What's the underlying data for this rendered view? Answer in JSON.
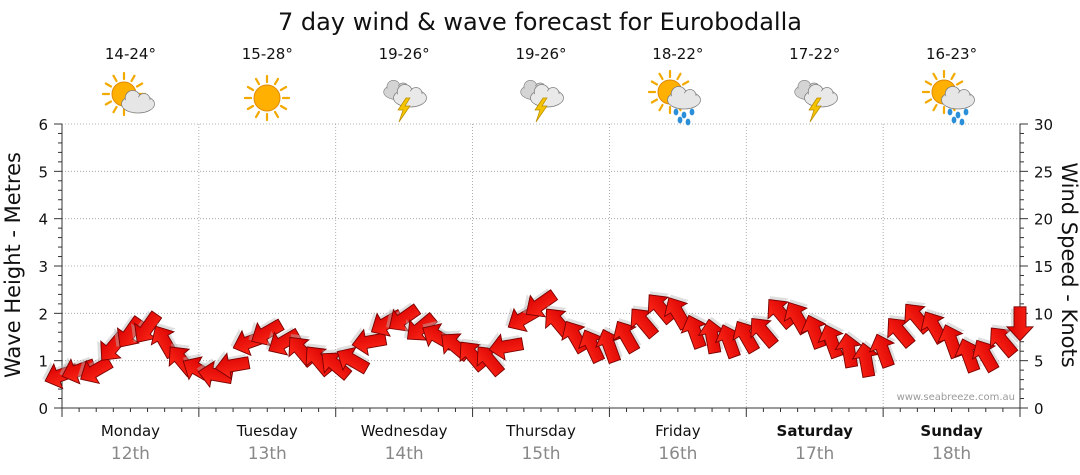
{
  "chart_data": {
    "type": "line",
    "title": "7 day wind & wave forecast for Eurobodalla",
    "y_left_label": "Wave Height - Metres",
    "y_right_label": "Wind Speed - Knots",
    "ylim_left": [
      0,
      6
    ],
    "ylim_right": [
      0,
      30
    ],
    "yticks_left": [
      "0",
      "1",
      "2",
      "3",
      "4",
      "5",
      "6"
    ],
    "yticks_right": [
      "0",
      "5",
      "10",
      "15",
      "20",
      "25",
      "30"
    ],
    "grid": true,
    "watermark": "www.seabreeze.com.au",
    "days": [
      {
        "day": "Monday",
        "date": "12th",
        "temp": "14-24°",
        "icon": "sun-cloud-icon",
        "bold": false
      },
      {
        "day": "Tuesday",
        "date": "13th",
        "temp": "15-28°",
        "icon": "sunny-icon",
        "bold": false
      },
      {
        "day": "Wednesday",
        "date": "14th",
        "temp": "19-26°",
        "icon": "thunderstorm-icon",
        "bold": false
      },
      {
        "day": "Thursday",
        "date": "15th",
        "temp": "19-26°",
        "icon": "thunderstorm-icon",
        "bold": false
      },
      {
        "day": "Friday",
        "date": "16th",
        "temp": "18-22°",
        "icon": "sun-cloud-rain-icon",
        "bold": false
      },
      {
        "day": "Saturday",
        "date": "17th",
        "temp": "17-22°",
        "icon": "thunderstorm-icon",
        "bold": true
      },
      {
        "day": "Sunday",
        "date": "18th",
        "temp": "16-23°",
        "icon": "sun-cloud-rain-icon",
        "bold": true
      }
    ],
    "series": [
      {
        "kind": "wind",
        "x_hours": [
          0,
          3,
          6,
          9,
          12,
          15,
          18,
          21,
          24,
          27,
          30,
          33,
          36,
          39,
          42,
          45,
          48,
          51,
          54,
          57,
          60,
          63,
          66,
          69,
          72,
          75,
          78,
          81,
          84,
          87,
          90,
          93,
          96,
          99,
          102,
          105,
          108,
          111,
          114,
          117,
          120,
          123,
          126,
          129,
          132,
          135,
          138,
          141,
          144,
          147,
          150,
          153,
          156,
          159,
          162,
          165,
          168
        ],
        "speed_knots": [
          3.5,
          4.0,
          4.0,
          6.5,
          8.0,
          8.5,
          7.0,
          5.0,
          4.0,
          3.5,
          4.5,
          7.0,
          8.0,
          7.0,
          6.0,
          5.0,
          4.5,
          5.0,
          7.0,
          9.0,
          9.5,
          8.5,
          7.5,
          6.5,
          5.5,
          5.0,
          6.5,
          9.5,
          11.0,
          9.0,
          7.5,
          6.5,
          6.5,
          7.5,
          9.0,
          10.5,
          10.0,
          8.0,
          7.5,
          7.0,
          7.5,
          8.0,
          10.0,
          9.5,
          8.0,
          7.0,
          6.0,
          5.0,
          6.0,
          8.0,
          9.5,
          8.5,
          7.0,
          5.5,
          5.5,
          7.0,
          9.0
        ],
        "dir_deg": [
          250,
          250,
          240,
          220,
          215,
          215,
          330,
          320,
          300,
          280,
          260,
          250,
          240,
          240,
          320,
          320,
          310,
          300,
          260,
          240,
          235,
          230,
          300,
          310,
          320,
          320,
          260,
          240,
          235,
          320,
          330,
          335,
          340,
          330,
          320,
          320,
          330,
          340,
          350,
          340,
          330,
          320,
          320,
          330,
          340,
          340,
          350,
          350,
          340,
          320,
          320,
          330,
          340,
          340,
          330,
          320,
          180
        ]
      }
    ]
  }
}
